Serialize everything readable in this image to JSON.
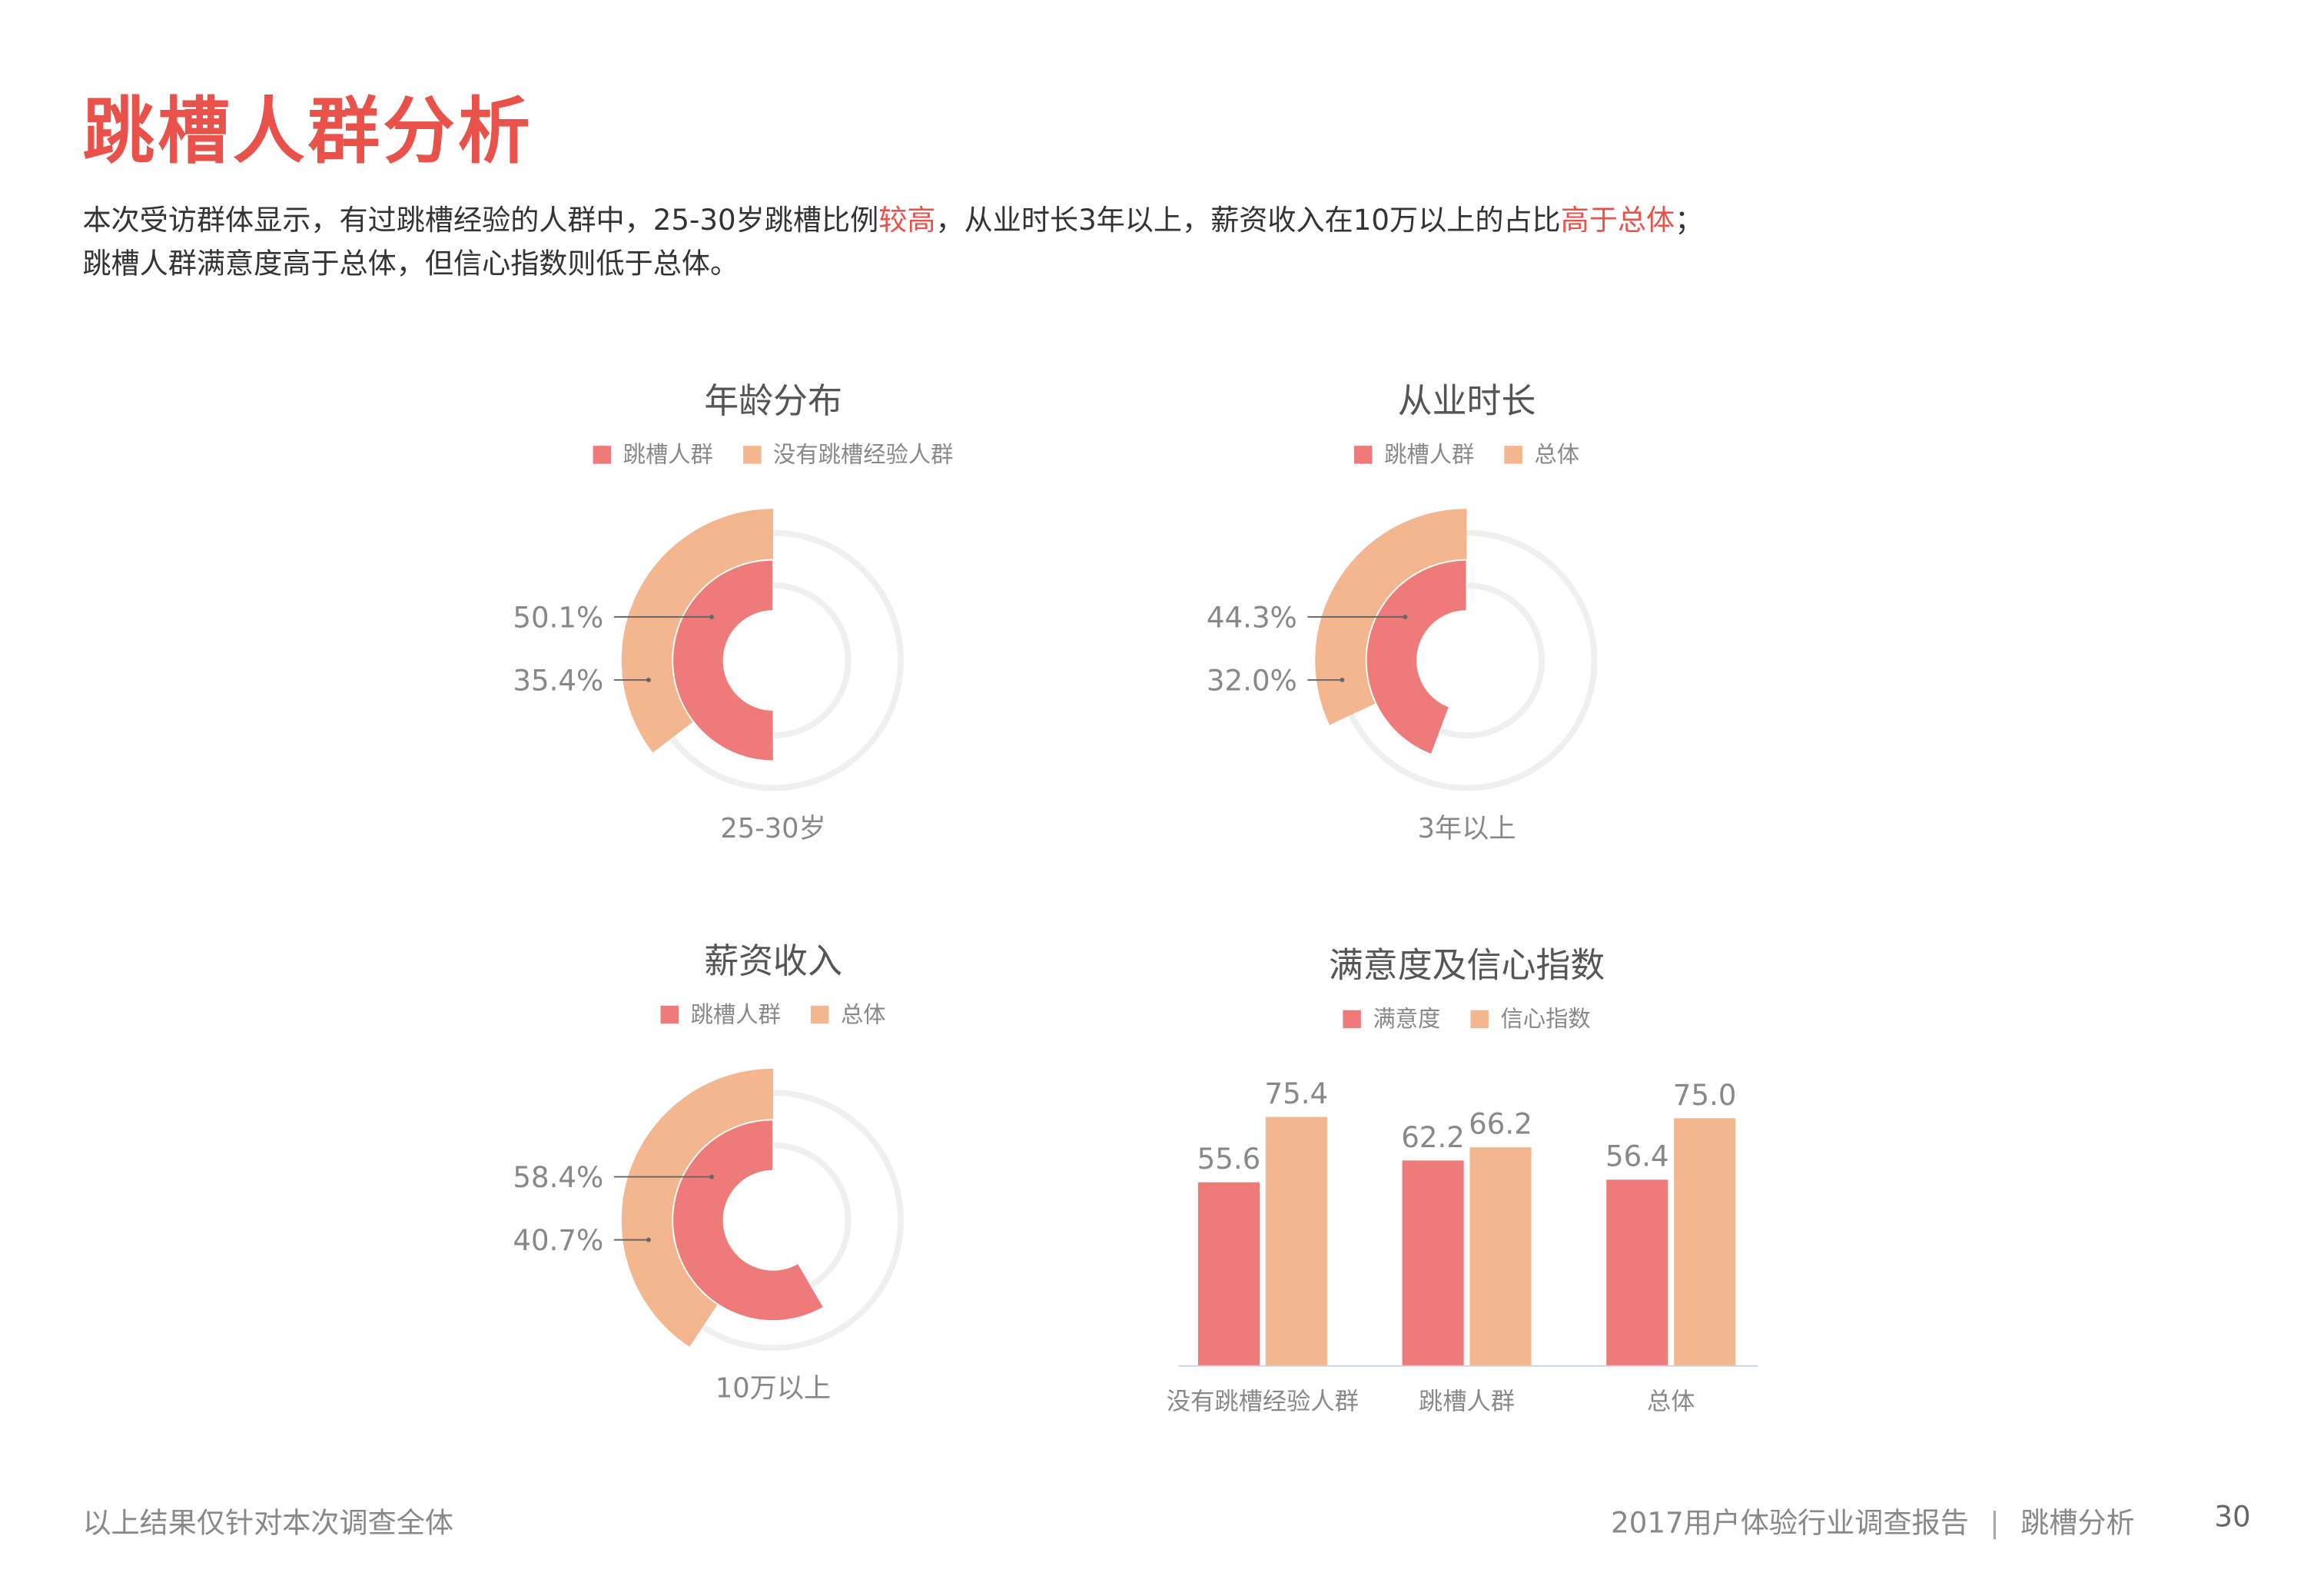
{
  "title": "跳槽人群分析",
  "paragraph": {
    "line1": [
      {
        "text": "本次受访群体显示，有过跳槽经验的人群中，25-30岁跳槽比例",
        "hl": false
      },
      {
        "text": "较高",
        "hl": true
      },
      {
        "text": "，从业时长3年以上，薪资收入在10万以上的占比",
        "hl": false
      },
      {
        "text": "高于总体",
        "hl": true
      },
      {
        "text": "；",
        "hl": false
      }
    ],
    "line2": "跳槽人群满意度高于总体，但信心指数则低于总体。"
  },
  "colors": {
    "title": "#e8524a",
    "highlight": "#e8524a",
    "series1": "#ee7a7a",
    "series2": "#f4b68e",
    "track": "#efefef"
  },
  "chart_data": [
    {
      "type": "radial-bar",
      "title": "年龄分布",
      "legend": [
        "跳槽人群",
        "没有跳槽经验人群"
      ],
      "category": "25-30岁",
      "series": [
        {
          "name": "跳槽人群",
          "value": 50.1,
          "label": "50.1%"
        },
        {
          "name": "没有跳槽经验人群",
          "value": 35.4,
          "label": "35.4%"
        }
      ]
    },
    {
      "type": "radial-bar",
      "title": "从业时长",
      "legend": [
        "跳槽人群",
        "总体"
      ],
      "category": "3年以上",
      "series": [
        {
          "name": "跳槽人群",
          "value": 44.3,
          "label": "44.3%"
        },
        {
          "name": "总体",
          "value": 32.0,
          "label": "32.0%"
        }
      ]
    },
    {
      "type": "radial-bar",
      "title": "薪资收入",
      "legend": [
        "跳槽人群",
        "总体"
      ],
      "category": "10万以上",
      "series": [
        {
          "name": "跳槽人群",
          "value": 58.4,
          "label": "58.4%"
        },
        {
          "name": "总体",
          "value": 40.7,
          "label": "40.7%"
        }
      ]
    },
    {
      "type": "bar",
      "title": "满意度及信心指数",
      "legend": [
        "满意度",
        "信心指数"
      ],
      "categories": [
        "没有跳槽经验人群",
        "跳槽人群",
        "总体"
      ],
      "series": [
        {
          "name": "满意度",
          "values": [
            55.6,
            62.2,
            56.4
          ],
          "labels": [
            "55.6",
            "62.2",
            "56.4"
          ]
        },
        {
          "name": "信心指数",
          "values": [
            75.4,
            66.2,
            75.0
          ],
          "labels": [
            "75.4",
            "66.2",
            "75.0"
          ]
        }
      ],
      "ylim": [
        0,
        80
      ],
      "grid": false
    }
  ],
  "footer": {
    "note": "以上结果仅针对本次调查全体",
    "report": "2017用户体验行业调查报告",
    "section": "跳槽分析",
    "page": "30"
  }
}
